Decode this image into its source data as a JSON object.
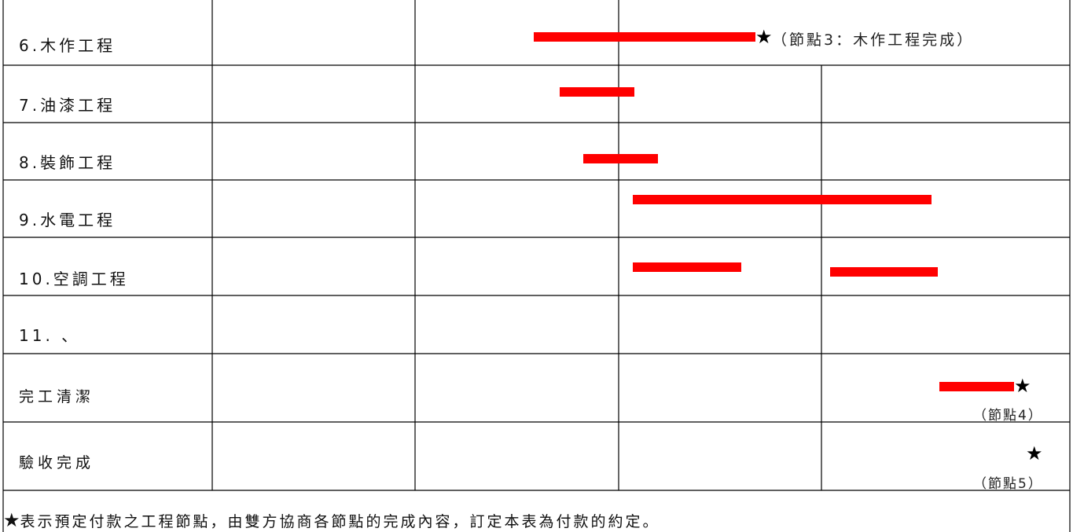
{
  "rows": [
    {
      "label": "6.木作工程"
    },
    {
      "label": "7.油漆工程"
    },
    {
      "label": "8.裝飾工程"
    },
    {
      "label": "9.水電工程"
    },
    {
      "label": "10.空調工程"
    },
    {
      "label": "11. 、"
    },
    {
      "label": "完工清潔"
    },
    {
      "label": "驗收完成"
    }
  ],
  "milestones": {
    "node3": "（節點3：木作工程完成）",
    "node4": "（節點4）",
    "node5": "（節點5）"
  },
  "star_symbol": "★",
  "footer": {
    "star": "★",
    "text": "表示預定付款之工程節點，由雙方協商各節點的完成內容，訂定本表為付款的約定。"
  },
  "colors": {
    "bar": "#ff0000",
    "grid": "#000000"
  }
}
